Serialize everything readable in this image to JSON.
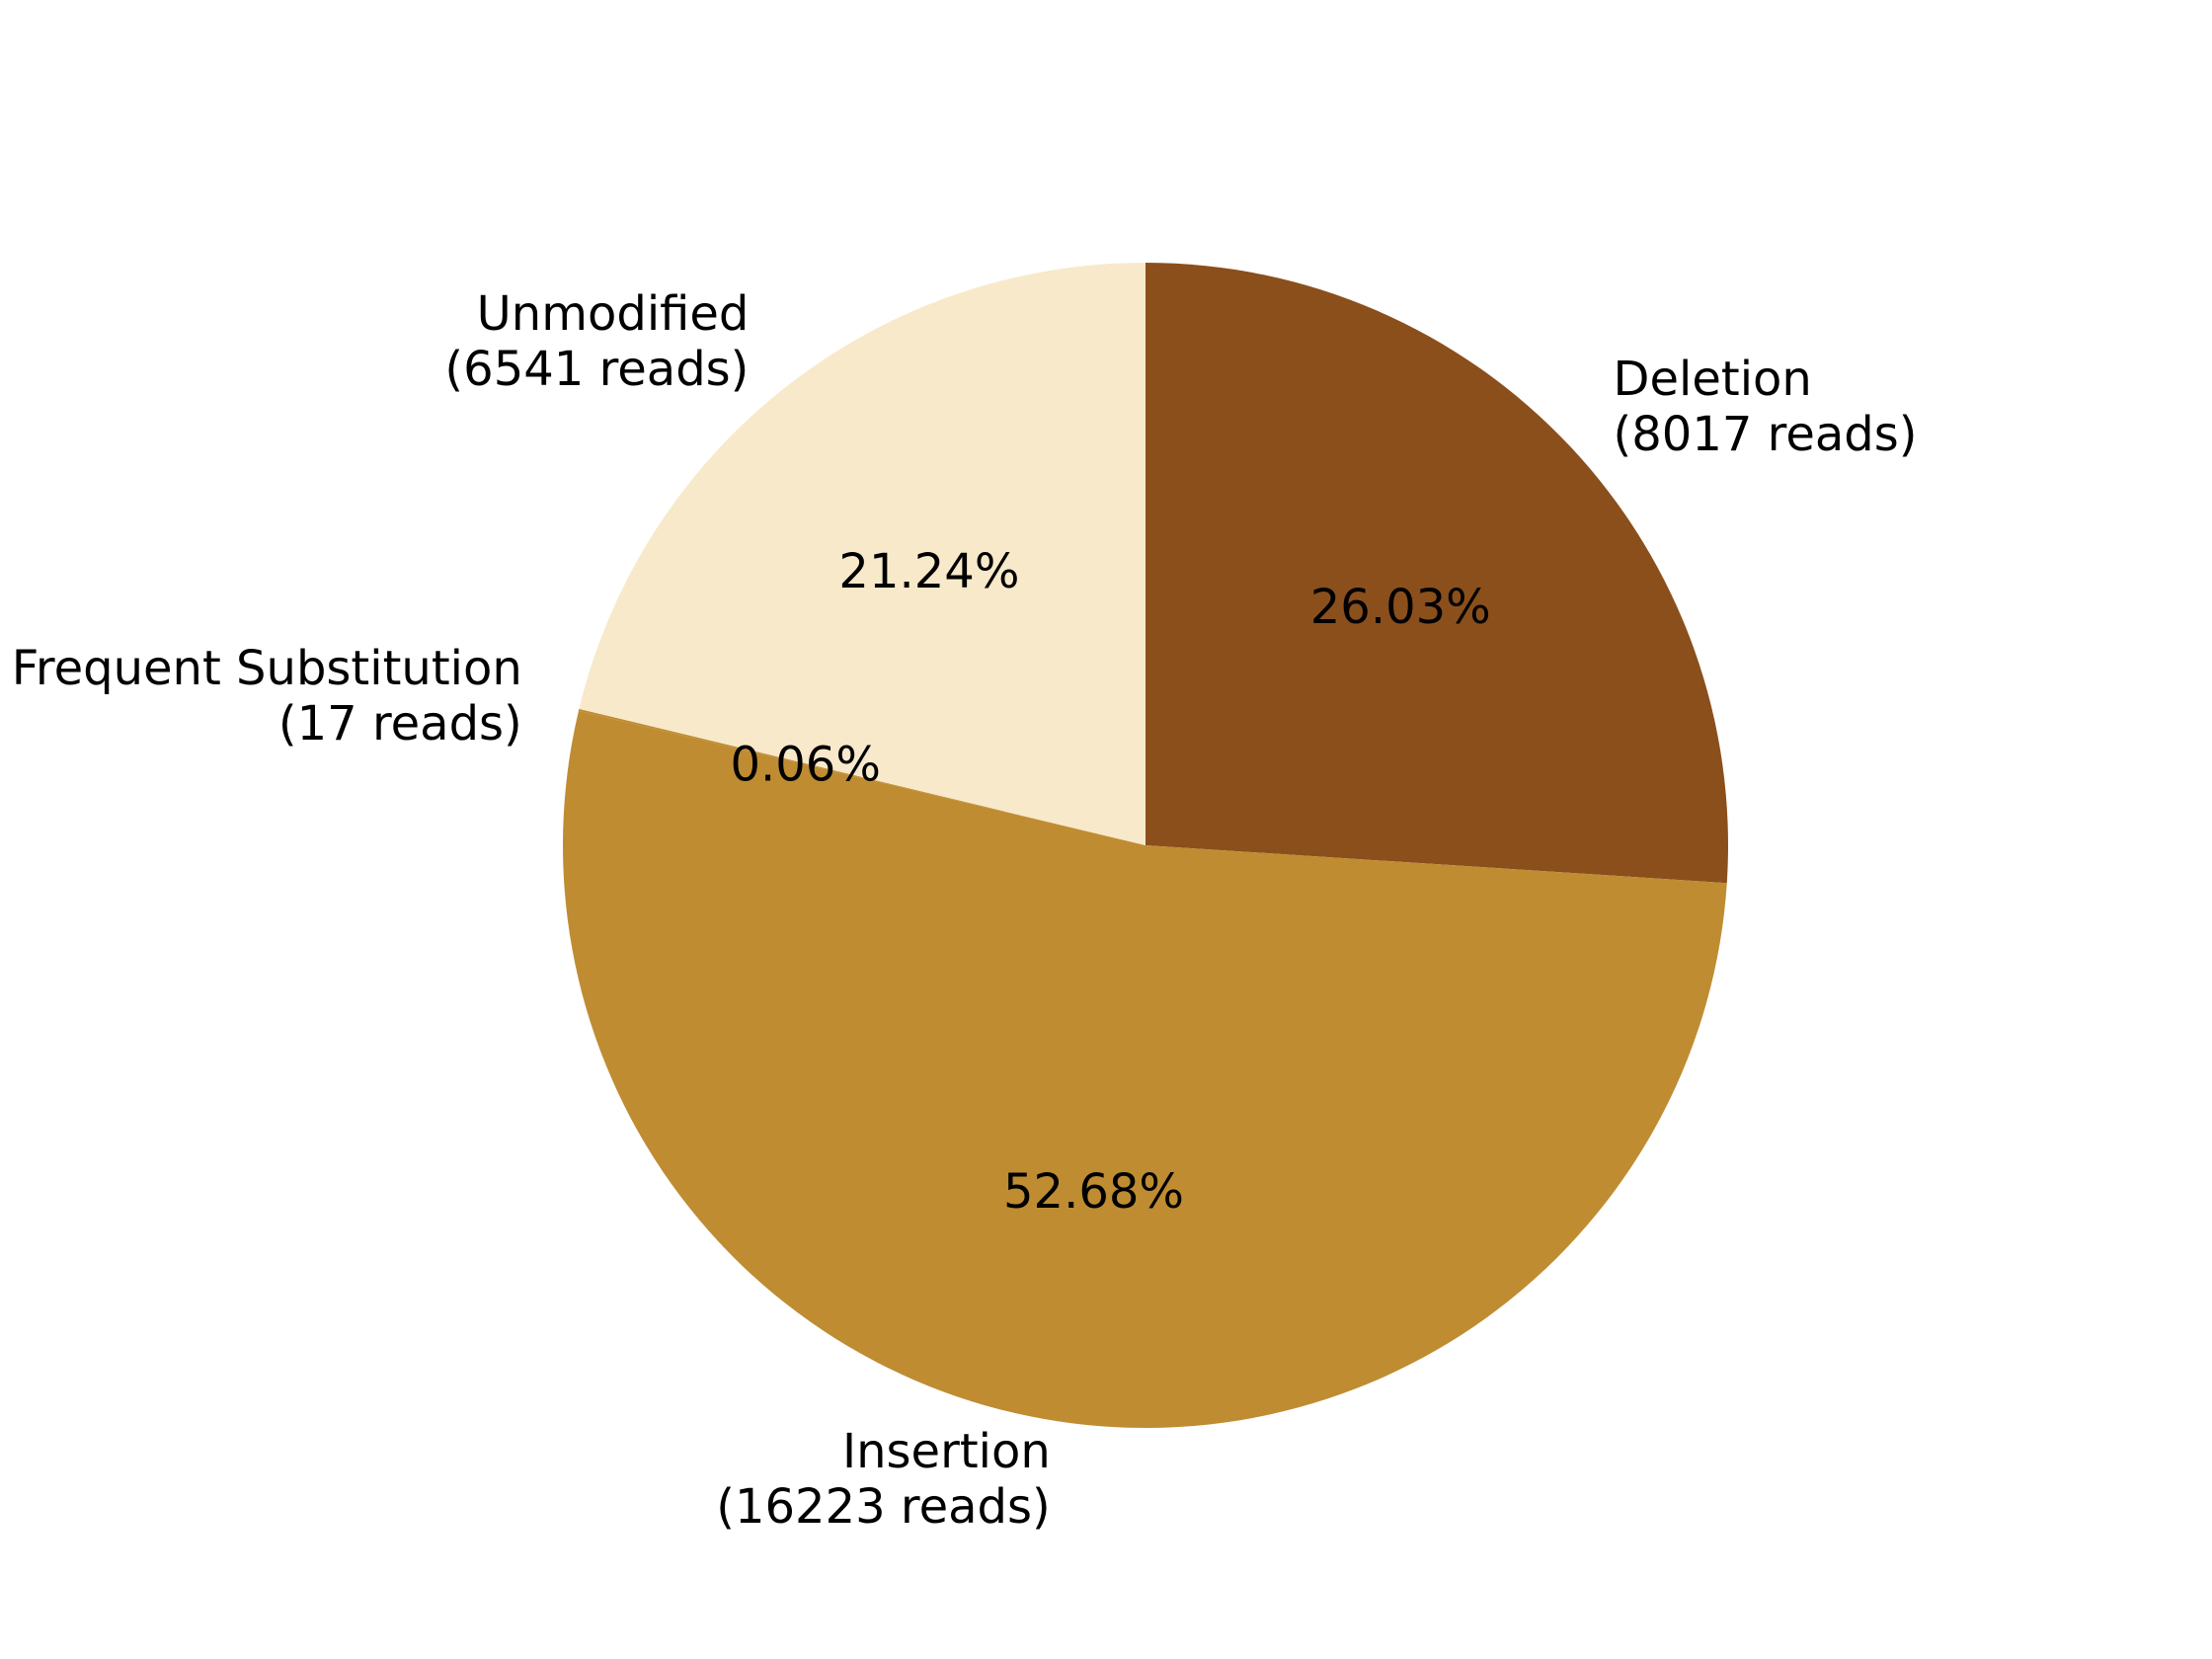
{
  "chart_data": {
    "type": "pie",
    "start_angle_deg": 90,
    "direction": "clockwise",
    "slices": [
      {
        "label": "Deletion",
        "reads_text": "(8017 reads)",
        "value": 8017,
        "pct_text": "26.03%",
        "color": "#8B4F1C"
      },
      {
        "label": "Insertion",
        "reads_text": "(16223 reads)",
        "value": 16223,
        "pct_text": "52.68%",
        "color": "#BF8C32"
      },
      {
        "label": "Frequent Substitution",
        "reads_text": "(17 reads)",
        "value": 17,
        "pct_text": "0.06%",
        "color": "#BF8C32"
      },
      {
        "label": "Unmodified",
        "reads_text": "(6541 reads)",
        "value": 6541,
        "pct_text": "21.24%",
        "color": "#F8E9CA"
      }
    ]
  }
}
